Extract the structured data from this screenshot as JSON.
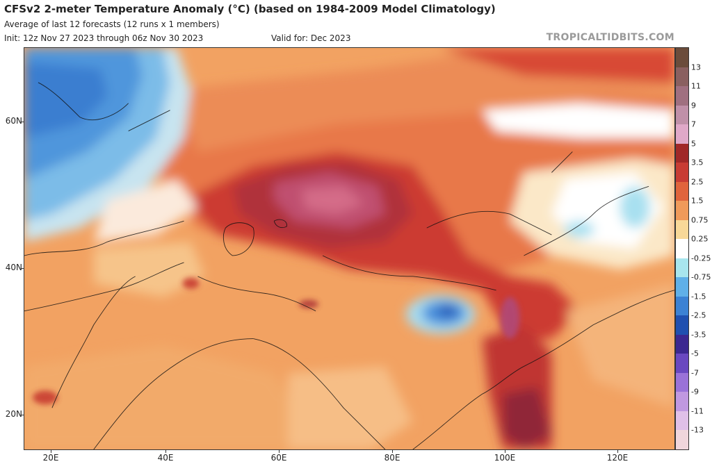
{
  "header": {
    "title": "CFSv2 2-meter Temperature Anomaly (°C) (based on 1984-2009 Model Climatology)",
    "subtitle": "Average of last 12 forecasts (12 runs x 1 members)",
    "init": "Init: 12z Nov 27 2023 through 06z Nov 30 2023",
    "valid": "Valid for: Dec 2023",
    "brand": "TROPICALTIDBITS.COM"
  },
  "map": {
    "lat_labels": [
      "60N",
      "40N",
      "20N"
    ],
    "lon_labels": [
      "20E",
      "40E",
      "60E",
      "80E",
      "100E",
      "120E"
    ]
  },
  "colorbar": {
    "labels": [
      "13",
      "11",
      "9",
      "7",
      "5",
      "3.5",
      "2.5",
      "1.5",
      "0.75",
      "0.25",
      "-0.25",
      "-0.75",
      "-1.5",
      "-2.5",
      "-3.5",
      "-5",
      "-7",
      "-9",
      "-11",
      "-13"
    ],
    "colors": [
      "#6b4c3b",
      "#8a6060",
      "#a07080",
      "#c090a8",
      "#e0a8c8",
      "#a02828",
      "#c83c34",
      "#e0643c",
      "#f09a5a",
      "#f8d898",
      "#ffffff",
      "#a8e6ee",
      "#60b0e8",
      "#3c82d4",
      "#2050b0",
      "#3c2890",
      "#6a48c0",
      "#9a72d8",
      "#c098e0",
      "#e0c0e8",
      "#f0d6dc"
    ]
  }
}
